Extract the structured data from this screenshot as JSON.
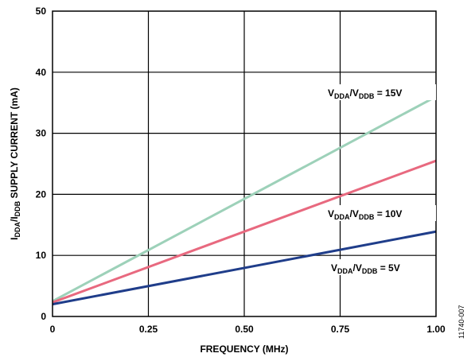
{
  "chart_data": {
    "type": "line",
    "xlabel": "FREQUENCY (MHz)",
    "ylabel": {
      "p1": "I",
      "s1": "DDA",
      "p2": "/I",
      "s2": "DDB",
      "p3": " SUPPLY CURRENT (mA)"
    },
    "xlim": [
      0,
      1.0
    ],
    "ylim": [
      0,
      50
    ],
    "x_ticks": [
      "0",
      "0.25",
      "0.50",
      "0.75",
      "1.00"
    ],
    "x_tick_values": [
      0,
      0.25,
      0.5,
      0.75,
      1.0
    ],
    "y_ticks": [
      "0",
      "10",
      "20",
      "30",
      "40",
      "50"
    ],
    "y_tick_values": [
      0,
      10,
      20,
      30,
      40,
      50
    ],
    "grid": true,
    "series": [
      {
        "label": {
          "a": "V",
          "b": "DDA",
          "c": "/V",
          "d": "DDB",
          "e": " = 15V"
        },
        "color": "#9dd1b9",
        "x": [
          0,
          1.0
        ],
        "y": [
          2.5,
          36.0
        ]
      },
      {
        "label": {
          "a": "V",
          "b": "DDA",
          "c": "/V",
          "d": "DDB",
          "e": " = 10V"
        },
        "color": "#e8697f",
        "x": [
          0,
          1.0
        ],
        "y": [
          2.3,
          25.5
        ]
      },
      {
        "label": {
          "a": "V",
          "b": "DDA",
          "c": "/V",
          "d": "DDB",
          "e": " = 5V"
        },
        "color": "#1f3d8a",
        "x": [
          0,
          1.0
        ],
        "y": [
          2.0,
          13.9
        ]
      }
    ]
  },
  "figure_id": "11740-007"
}
